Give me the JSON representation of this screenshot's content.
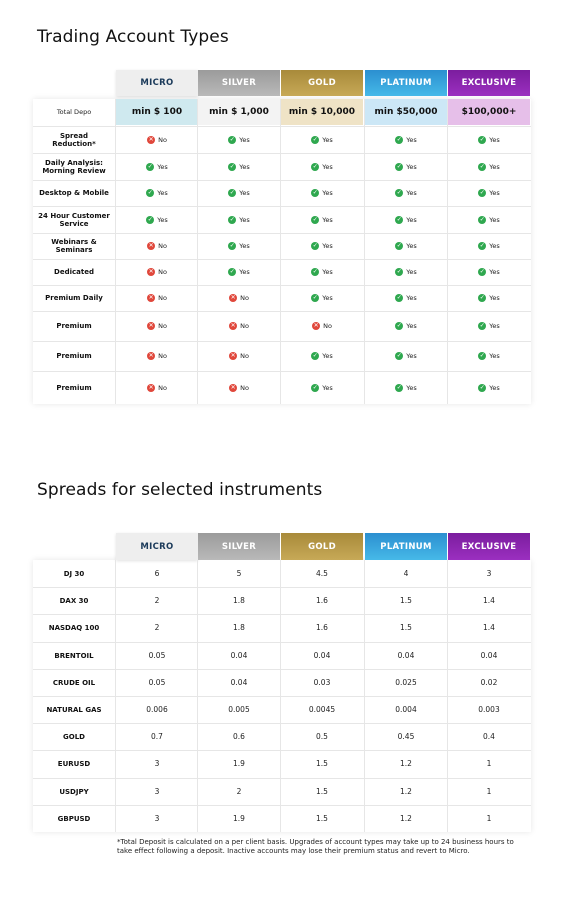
{
  "title1": "Trading Account Types",
  "title2": "Spreads for selected instruments",
  "tiers": [
    "MICRO",
    "SILVER",
    "GOLD",
    "PLATINUM",
    "EXCLUSIVE"
  ],
  "colors": {
    "micro": "#eeeeee",
    "silver": "#a9a9a9",
    "gold": "#b8993f",
    "platinum": "#3aa8e0",
    "exclusive": "#8a24b0",
    "yes": "#2fa84f",
    "no": "#e0473b"
  },
  "deposit": {
    "label": "Total Depo",
    "values": [
      "min $ 100",
      "min $ 1,000",
      "min $ 10,000",
      "min $50,000",
      "$100,000+"
    ]
  },
  "features": [
    {
      "label": "Spread Reduction*",
      "values": [
        "No",
        "Yes",
        "Yes",
        "Yes",
        "Yes"
      ]
    },
    {
      "label": "Daily Analysis: Morning Review",
      "values": [
        "Yes",
        "Yes",
        "Yes",
        "Yes",
        "Yes"
      ]
    },
    {
      "label": "Desktop & Mobile",
      "values": [
        "Yes",
        "Yes",
        "Yes",
        "Yes",
        "Yes"
      ]
    },
    {
      "label": "24 Hour Customer Service",
      "values": [
        "Yes",
        "Yes",
        "Yes",
        "Yes",
        "Yes"
      ]
    },
    {
      "label": "Webinars & Seminars",
      "values": [
        "No",
        "Yes",
        "Yes",
        "Yes",
        "Yes"
      ]
    },
    {
      "label": "Dedicated",
      "values": [
        "No",
        "Yes",
        "Yes",
        "Yes",
        "Yes"
      ]
    },
    {
      "label": "Premium Daily",
      "values": [
        "No",
        "No",
        "Yes",
        "Yes",
        "Yes"
      ]
    },
    {
      "label": "Premium",
      "values": [
        "No",
        "No",
        "No",
        "Yes",
        "Yes"
      ]
    },
    {
      "label": "Premium",
      "values": [
        "No",
        "No",
        "Yes",
        "Yes",
        "Yes"
      ]
    },
    {
      "label": "Premium",
      "values": [
        "No",
        "No",
        "Yes",
        "Yes",
        "Yes"
      ]
    }
  ],
  "spreads": [
    {
      "label": "DJ 30",
      "values": [
        "6",
        "5",
        "4.5",
        "4",
        "3"
      ]
    },
    {
      "label": "DAX 30",
      "values": [
        "2",
        "1.8",
        "1.6",
        "1.5",
        "1.4"
      ]
    },
    {
      "label": "NASDAQ 100",
      "values": [
        "2",
        "1.8",
        "1.6",
        "1.5",
        "1.4"
      ]
    },
    {
      "label": "BRENTOIL",
      "values": [
        "0.05",
        "0.04",
        "0.04",
        "0.04",
        "0.04"
      ]
    },
    {
      "label": "CRUDE OIL",
      "values": [
        "0.05",
        "0.04",
        "0.03",
        "0.025",
        "0.02"
      ]
    },
    {
      "label": "NATURAL GAS",
      "values": [
        "0.006",
        "0.005",
        "0.0045",
        "0.004",
        "0.003"
      ]
    },
    {
      "label": "GOLD",
      "values": [
        "0.7",
        "0.6",
        "0.5",
        "0.45",
        "0.4"
      ]
    },
    {
      "label": "EURUSD",
      "values": [
        "3",
        "1.9",
        "1.5",
        "1.2",
        "1"
      ]
    },
    {
      "label": "USDJPY",
      "values": [
        "3",
        "2",
        "1.5",
        "1.2",
        "1"
      ]
    },
    {
      "label": "GBPUSD",
      "values": [
        "3",
        "1.9",
        "1.5",
        "1.2",
        "1"
      ]
    }
  ],
  "footnote": "*Total Deposit is calculated on a per client basis. Upgrades of account types may take up to 24 business hours to take effect following a deposit. Inactive accounts may lose their premium status and revert to Micro."
}
